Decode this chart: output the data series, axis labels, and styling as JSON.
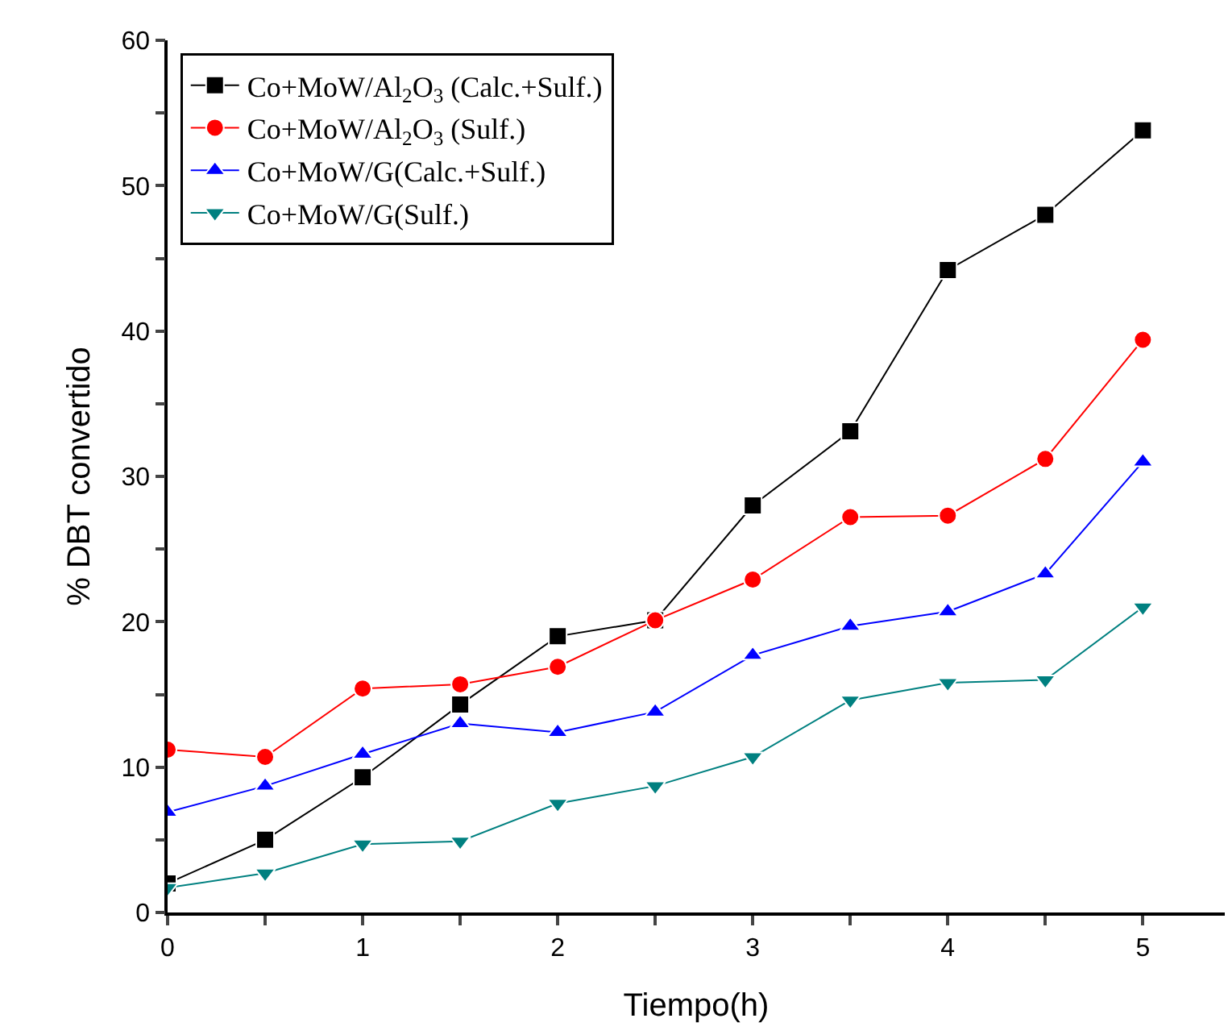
{
  "chart_data": {
    "type": "line",
    "xlabel": "Tiempo(h)",
    "ylabel": "% DBT convertido",
    "x": [
      0,
      0.5,
      1,
      1.5,
      2,
      2.5,
      3,
      3.5,
      4,
      4.5,
      5
    ],
    "series": [
      {
        "name": "Co+MoW/Al$_{2}$O$_{3}$ (Calc.+Sulf.)",
        "color": "#000000",
        "marker": "square",
        "values": [
          2.0,
          5.0,
          9.3,
          14.3,
          19.0,
          20.1,
          28.0,
          33.1,
          44.2,
          48.0,
          53.8
        ]
      },
      {
        "name": "Co+MoW/Al$_{2}$O$_{3}$ (Sulf.)",
        "color": "#ff0000",
        "marker": "circle",
        "values": [
          11.2,
          10.7,
          15.4,
          15.7,
          16.9,
          20.1,
          22.9,
          27.2,
          27.3,
          31.2,
          39.4
        ]
      },
      {
        "name": "Co+MoW/G(Calc.+Sulf.)",
        "color": "#0000ff",
        "marker": "triangle",
        "values": [
          6.9,
          8.7,
          10.9,
          13.0,
          12.4,
          13.8,
          17.7,
          19.7,
          20.7,
          23.3,
          31.0
        ]
      },
      {
        "name": "Co+MoW/G(Sulf.)",
        "color": "#008080",
        "marker": "triangle-down",
        "values": [
          1.7,
          2.7,
          4.7,
          4.9,
          7.5,
          8.7,
          10.7,
          14.6,
          15.8,
          16.0,
          21.0
        ]
      }
    ],
    "xlim": [
      0,
      5.42
    ],
    "xticks": [
      0,
      {
        "value": 0.5,
        "label": null
      },
      1,
      {
        "value": 1.5,
        "label": null
      },
      2,
      {
        "value": 2.5,
        "label": null
      },
      3,
      {
        "value": 3.5,
        "label": null
      },
      4,
      {
        "value": 4.5,
        "label": null
      },
      5
    ],
    "ylim": [
      0,
      60
    ],
    "yticks": [
      0,
      {
        "value": 5,
        "label": null
      },
      10,
      {
        "value": 15,
        "label": null
      },
      20,
      {
        "value": 25,
        "label": null
      },
      30,
      {
        "value": 35,
        "label": null
      },
      40,
      {
        "value": 45,
        "label": null
      },
      50,
      {
        "value": 55,
        "label": null
      },
      60
    ],
    "grid": false,
    "legend": "top left",
    "line_style": "solid"
  }
}
